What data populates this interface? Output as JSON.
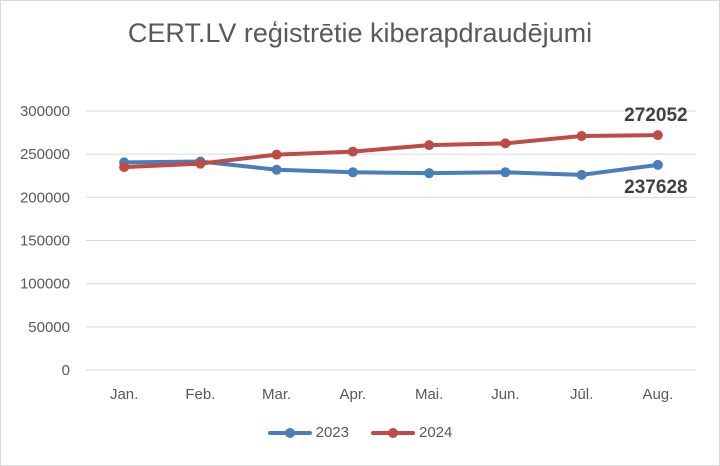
{
  "chart_data": {
    "type": "line",
    "title": "CERT.LV reģistrētie kiberapdraudējumi",
    "categories": [
      "Jan.",
      "Feb.",
      "Mar.",
      "Apr.",
      "Mai.",
      "Jun.",
      "Jūl.",
      "Aug."
    ],
    "series": [
      {
        "name": "2023",
        "color": "#4a7ebb",
        "values": [
          240500,
          241500,
          232000,
          229000,
          228000,
          229000,
          226000,
          237628
        ]
      },
      {
        "name": "2024",
        "color": "#be4b48",
        "values": [
          235000,
          239000,
          249500,
          253000,
          260500,
          262500,
          271000,
          272052
        ]
      }
    ],
    "ylim": [
      0,
      300000
    ],
    "yticks": [
      0,
      50000,
      100000,
      150000,
      200000,
      250000,
      300000
    ],
    "ytick_labels": [
      "0",
      "50000",
      "100000",
      "150000",
      "200000",
      "250000",
      "300000"
    ],
    "grid": true,
    "legend_position": "bottom",
    "annotations": [
      {
        "series": "2024",
        "text": "272052",
        "position": "above-last-point"
      },
      {
        "series": "2023",
        "text": "237628",
        "position": "below-last-point"
      }
    ]
  }
}
